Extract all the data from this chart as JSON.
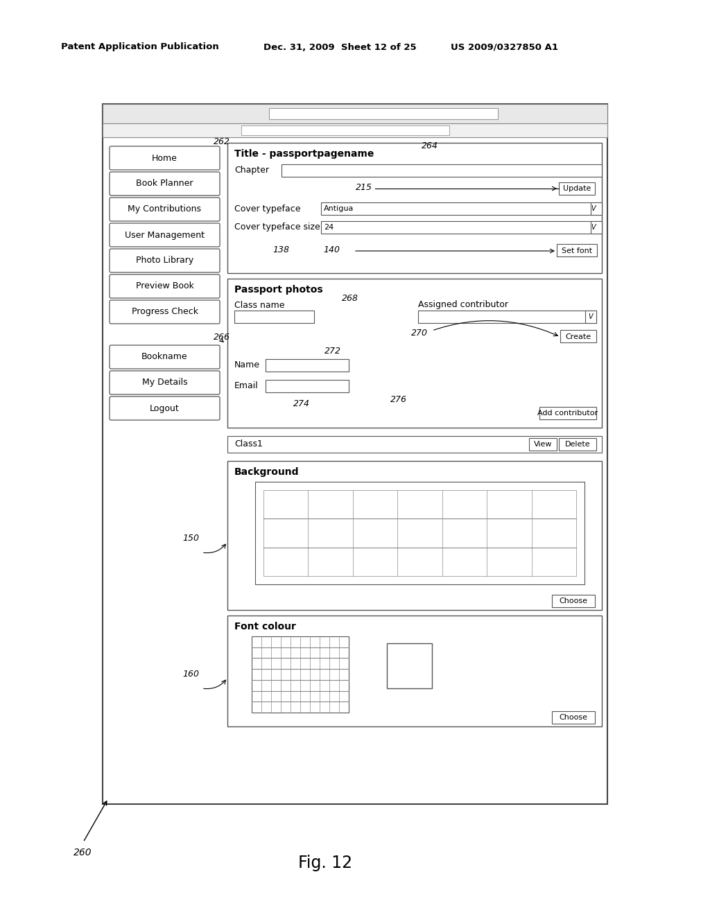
{
  "bg_color": "#ffffff",
  "header_line1": "Patent Application Publication",
  "header_line2": "Dec. 31, 2009  Sheet 12 of 25",
  "header_line3": "US 2009/0327850 A1",
  "fig_label": "Fig. 12",
  "ref_260": "260",
  "ref_262": "262",
  "ref_266": "266",
  "nav_buttons": [
    "Home",
    "Book Planner",
    "My Contributions",
    "User Management",
    "Photo Library",
    "Preview Book",
    "Progress Check"
  ],
  "nav_buttons2": [
    "Bookname",
    "My Details",
    "Logout"
  ],
  "title_section_label": "Title - passportpagename",
  "chapter_label": "Chapter",
  "ref_264": "264",
  "ref_215": "215",
  "update_btn": "Update",
  "cover_typeface_label": "Cover typeface",
  "antigua_text": "Antigua",
  "cover_typeface_size_label": "Cover typeface size",
  "size_24": "24",
  "ref_138": "138",
  "ref_140": "140",
  "set_font_btn": "Set font",
  "passport_photos_label": "Passport photos",
  "class_name_label": "Class name",
  "ref_268": "268",
  "assigned_contributor_label": "Assigned contributor",
  "ref_270": "270",
  "create_btn": "Create",
  "ref_272": "272",
  "name_label": "Name",
  "email_label": "Email",
  "ref_274": "274",
  "ref_276": "276",
  "add_contributor_btn": "Add contributor",
  "class1_label": "Class1",
  "view_btn": "View",
  "delete_btn": "Delete",
  "ref_150": "150",
  "background_label": "Background",
  "choose_btn1": "Choose",
  "ref_160": "160",
  "font_colour_label": "Font colour",
  "choose_btn2": "Choose"
}
